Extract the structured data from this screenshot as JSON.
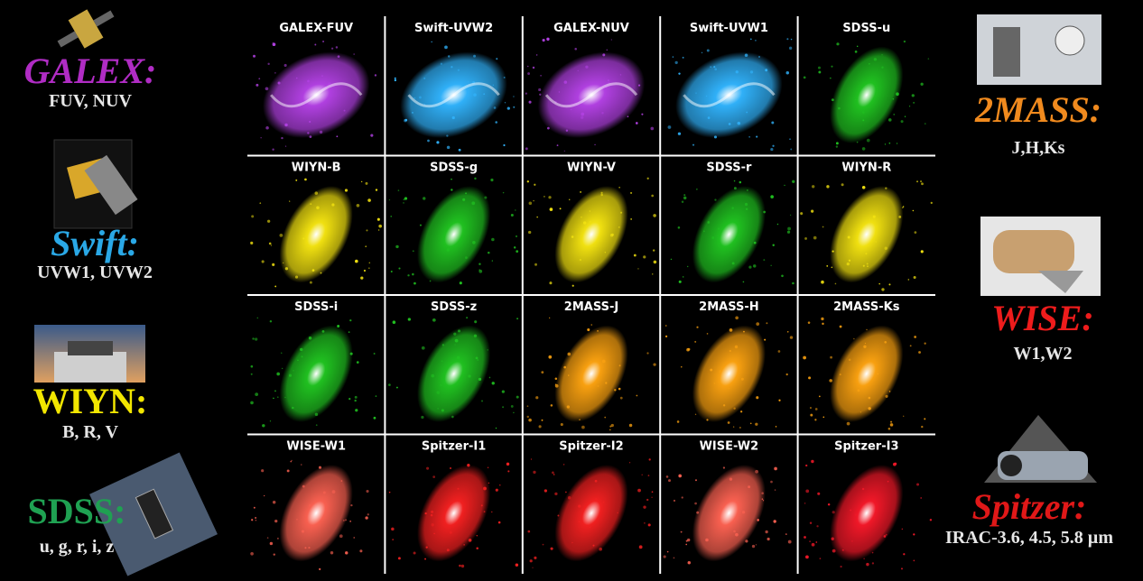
{
  "missions": {
    "left": [
      {
        "name": "GALEX:",
        "bands": "FUV, NUV",
        "color": "#b02cc4"
      },
      {
        "name": "Swift:",
        "bands": "UVW1, UVW2",
        "color": "#2aa8e6"
      },
      {
        "name": "WIYN:",
        "bands": "B, R, V",
        "color": "#f2e600"
      },
      {
        "name": "SDSS:",
        "bands": "u, g, r, i, z",
        "color": "#1fa152"
      }
    ],
    "right": [
      {
        "name": "2MASS:",
        "bands": "J,H,Ks",
        "color": "#f08a1e"
      },
      {
        "name": "WISE:",
        "bands": "W1,W2",
        "color": "#ee1c1c"
      },
      {
        "name": "Spitzer:",
        "bands": "IRAC-3.6, 4.5, 5.8 µm",
        "color": "#e01818"
      }
    ]
  },
  "panels": [
    {
      "label": "GALEX-FUV",
      "color": "#b040e0"
    },
    {
      "label": "Swift-UVW2",
      "color": "#30b0f8"
    },
    {
      "label": "GALEX-NUV",
      "color": "#b040e0"
    },
    {
      "label": "Swift-UVW1",
      "color": "#30b0f8"
    },
    {
      "label": "SDSS-u",
      "color": "#20c020"
    },
    {
      "label": "WIYN-B",
      "color": "#f0e010"
    },
    {
      "label": "SDSS-g",
      "color": "#20c020"
    },
    {
      "label": "WIYN-V",
      "color": "#f0e010"
    },
    {
      "label": "SDSS-r",
      "color": "#20c020"
    },
    {
      "label": "WIYN-R",
      "color": "#f0e010"
    },
    {
      "label": "SDSS-i",
      "color": "#20c020"
    },
    {
      "label": "SDSS-z",
      "color": "#20c020"
    },
    {
      "label": "2MASS-J",
      "color": "#f8a010"
    },
    {
      "label": "2MASS-H",
      "color": "#f8a010"
    },
    {
      "label": "2MASS-Ks",
      "color": "#f8a010"
    },
    {
      "label": "WISE-W1",
      "color": "#f86050"
    },
    {
      "label": "Spitzer-I1",
      "color": "#f02020"
    },
    {
      "label": "Spitzer-I2",
      "color": "#f02020"
    },
    {
      "label": "WISE-W2",
      "color": "#f86050"
    },
    {
      "label": "Spitzer-I3",
      "color": "#f01828"
    }
  ]
}
